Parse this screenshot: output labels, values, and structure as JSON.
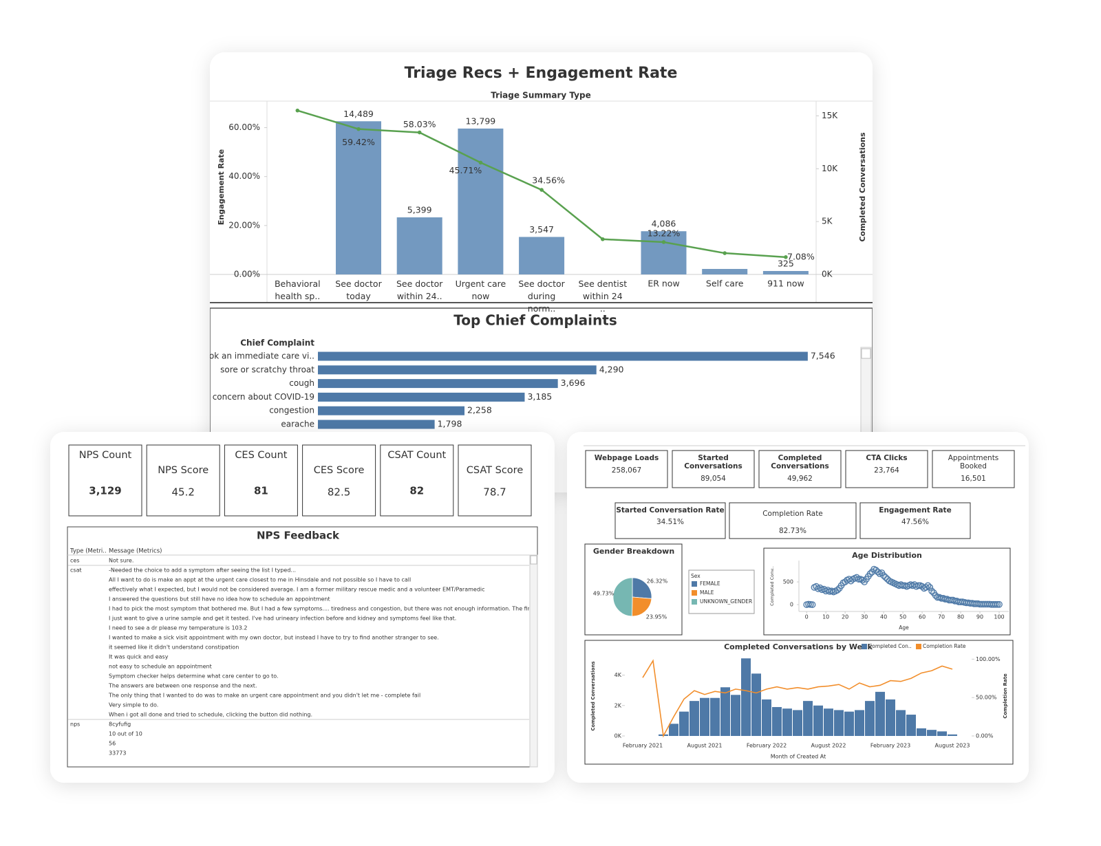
{
  "chart_data": [
    {
      "type": "bar",
      "title": "Triage Recs + Engagement Rate",
      "xlabel": "Triage Summary Type",
      "ylabel": "Engagement Rate",
      "y2label": "Completed Conversations",
      "categories": [
        "Behavioral health sp..",
        "See doctor today",
        "See doctor within 24..",
        "Urgent care now",
        "See doctor during norm..",
        "See dentist within 24 ..",
        "ER now",
        "Self care",
        "911 now"
      ],
      "ylim": [
        0,
        70
      ],
      "yticks": [
        {
          "value": 0,
          "label": "0.00%"
        },
        {
          "value": 20,
          "label": "20.00%"
        },
        {
          "value": 40,
          "label": "40.00%"
        },
        {
          "value": 60,
          "label": "60.00%"
        }
      ],
      "y2lim": [
        0,
        16200
      ],
      "y2ticks": [
        {
          "value": 0,
          "label": "0K"
        },
        {
          "value": 5000,
          "label": "5K"
        },
        {
          "value": 10000,
          "label": "10K"
        },
        {
          "value": 15000,
          "label": "15K"
        }
      ],
      "series": [
        {
          "type": "bar",
          "axis": "y2",
          "color": "#7399c0",
          "values": [
            null,
            14489,
            5399,
            13799,
            3547,
            null,
            4086,
            520,
            325
          ],
          "value_labels": [
            null,
            "14,489",
            "5,399",
            "13,799",
            "3,547",
            null,
            "4,086",
            null,
            "325"
          ]
        },
        {
          "type": "line",
          "color": "#59a14f",
          "values": [
            67,
            59.42,
            58.03,
            45.71,
            34.56,
            14.4,
            13.22,
            8.7,
            7.08
          ],
          "value_labels": [
            null,
            "59.42%",
            "58.03%",
            "45.71%",
            "34.56%",
            null,
            "13.22%",
            null,
            "7.08%"
          ]
        }
      ]
    },
    {
      "type": "hbar",
      "title": "Top Chief Complaints",
      "ylabel": "Chief Complaint",
      "categories": [
        "book an immediate care vi..",
        "sore or scratchy throat",
        "cough",
        "concern about COVID-19",
        "congestion",
        "earache"
      ],
      "values": [
        7546,
        4290,
        3696,
        3185,
        2258,
        1798
      ],
      "value_labels": [
        "7,546",
        "4,290",
        "3,696",
        "3,185",
        "2,258",
        "1,798"
      ],
      "color": "#4e79a7",
      "xlim": [
        0,
        8300
      ]
    },
    {
      "type": "pie",
      "title": "Gender Breakdown",
      "legend_title": "Sex",
      "categories": [
        "FEMALE",
        "MALE",
        "UNKNOWN_GENDER"
      ],
      "values": [
        26.32,
        23.95,
        49.73
      ],
      "value_labels": [
        "26.32%",
        "23.95%",
        "49.73%"
      ],
      "colors": [
        "#4e79a7",
        "#f28e2b",
        "#76b7b2"
      ]
    },
    {
      "type": "scatter",
      "title": "Age Distribution",
      "xlabel": "Age",
      "ylabel": "Completed Conv..",
      "color": "#4e79a7",
      "x": [
        0,
        1,
        2,
        3,
        4,
        5,
        6,
        7,
        8,
        9,
        10,
        11,
        12,
        13,
        14,
        15,
        16,
        17,
        18,
        19,
        20,
        21,
        22,
        23,
        24,
        25,
        26,
        27,
        28,
        29,
        30,
        31,
        32,
        33,
        34,
        35,
        36,
        37,
        38,
        39,
        40,
        41,
        42,
        43,
        44,
        45,
        46,
        47,
        48,
        49,
        50,
        51,
        52,
        53,
        54,
        55,
        56,
        57,
        58,
        59,
        60,
        61,
        62,
        63,
        64,
        65,
        66,
        67,
        68,
        69,
        70,
        71,
        72,
        73,
        74,
        75,
        76,
        77,
        78,
        79,
        80,
        81,
        82,
        83,
        84,
        85,
        86,
        87,
        88,
        89,
        90,
        91,
        92,
        93,
        94,
        95,
        96,
        97,
        98,
        99,
        100
      ],
      "values": [
        0,
        10,
        5,
        0,
        380,
        400,
        350,
        370,
        330,
        340,
        300,
        320,
        290,
        300,
        280,
        300,
        320,
        360,
        420,
        480,
        500,
        540,
        560,
        520,
        560,
        580,
        600,
        560,
        560,
        540,
        500,
        560,
        620,
        680,
        720,
        780,
        760,
        720,
        680,
        700,
        640,
        600,
        560,
        520,
        500,
        480,
        460,
        440,
        420,
        440,
        420,
        420,
        400,
        420,
        440,
        420,
        440,
        400,
        420,
        420,
        400,
        360,
        380,
        420,
        380,
        300,
        260,
        200,
        160,
        160,
        140,
        140,
        120,
        120,
        100,
        100,
        100,
        80,
        80,
        60,
        60,
        60,
        50,
        40,
        40,
        30,
        30,
        20,
        20,
        20,
        10,
        10,
        10,
        10,
        10,
        10,
        5,
        5,
        5,
        5,
        5
      ],
      "xlim": [
        -4,
        105
      ],
      "xticks": [
        0,
        10,
        20,
        30,
        40,
        50,
        60,
        70,
        80,
        90,
        100
      ],
      "ylim": [
        -150,
        970
      ],
      "yticks": [
        0,
        500
      ]
    },
    {
      "type": "bar",
      "title": "Completed Conversations by Week",
      "xlabel": "Month of Created At",
      "ylabel": "Completed Conversations",
      "y2label": "Completion Rate",
      "categories": [
        "February 2021",
        null,
        null,
        null,
        null,
        null,
        "August 2021",
        null,
        null,
        null,
        null,
        null,
        "February 2022",
        null,
        null,
        null,
        null,
        null,
        "August 2022",
        null,
        null,
        null,
        null,
        null,
        "February 2023",
        null,
        null,
        null,
        null,
        null,
        "August 2023"
      ],
      "ylim": [
        0,
        5200
      ],
      "yticks": [
        {
          "value": 0,
          "label": "0K"
        },
        {
          "value": 2000,
          "label": "2K"
        },
        {
          "value": 4000,
          "label": "4K"
        }
      ],
      "y2lim": [
        0,
        103
      ],
      "y2ticks": [
        {
          "value": 0,
          "label": "0.00%"
        },
        {
          "value": 50,
          "label": "50.00%"
        },
        {
          "value": 100,
          "label": "100.00%"
        }
      ],
      "series": [
        {
          "name": "Completed Con..",
          "type": "bar",
          "color": "#4e79a7",
          "values": [
            null,
            null,
            100,
            800,
            1600,
            2300,
            2500,
            2500,
            3200,
            2700,
            5100,
            4100,
            2400,
            1900,
            1800,
            1700,
            2300,
            2000,
            1800,
            1700,
            1600,
            1700,
            2300,
            2900,
            2400,
            1700,
            1400,
            500,
            400,
            300,
            100
          ]
        },
        {
          "name": "Completion Rate",
          "type": "line",
          "axis": "y2",
          "color": "#f28e2b",
          "values": [
            76,
            98,
            0,
            25,
            48,
            59,
            54,
            58,
            56,
            61,
            59,
            56,
            61,
            64,
            61,
            63,
            61,
            64,
            65,
            67,
            61,
            69,
            64,
            66,
            72,
            71,
            75,
            82,
            85,
            91,
            87
          ]
        }
      ]
    }
  ],
  "survey_cards": [
    {
      "label": "NPS Count",
      "value": "3,129"
    },
    {
      "label": "NPS Score",
      "value": "45.2"
    },
    {
      "label": "CES Count",
      "value": "81"
    },
    {
      "label": "CES Score",
      "value": "82.5"
    },
    {
      "label": "CSAT Count",
      "value": "82"
    },
    {
      "label": "CSAT Score",
      "value": "78.7"
    }
  ],
  "nps_feedback": {
    "title": "NPS Feedback",
    "columns": [
      "Type (Metri..",
      "Message (Metrics)"
    ],
    "groups": [
      {
        "type": "ces",
        "messages": [
          "Not sure."
        ]
      },
      {
        "type": "csat",
        "messages": [
          "-Needed the choice to add a symptom after seeing the list I typed...",
          "All I want to do is make an appt at the urgent care closest to me in Hinsdale and not possible so I have to call",
          "effectively what I expected, but I would not be considered average.  I am a former military rescue medic and a volunteer EMT/Paramedic",
          "I answered the questions but still have no idea  how to schedule an appointment",
          "I had to pick the most symptom that bothered me.  But I had a few symptoms.... tiredness and congestion, but there was not enough information.  The first",
          "I just want to give a urine sample and get it tested. I've had urineary infection before and kidney and symptoms feel like that.",
          "I need to see a dr please  my temperature is 103.2",
          "I wanted to make a sick visit appointment with my own doctor, but instead I have to try to find another stranger to see.",
          "it seemed like it didn't understand constipation",
          "It was quick and easy",
          "not easy to schedule an appointment",
          "Symptom checker helps determine what care center to go to.",
          "The answers are between one response and the next.",
          "The only thing that I wanted to do was to make an urgent care appointment and you didn't let me - complete fail",
          "Very simple to do.",
          "When i got all done and tried to schedule, clicking the button did nothing."
        ]
      },
      {
        "type": "nps",
        "messages": [
          "8cyfufig",
          "10 out of 10",
          "56",
          "33773"
        ]
      }
    ]
  },
  "metric_cards": [
    {
      "label": "Webpage Loads",
      "value": "258,067"
    },
    {
      "label": "Started Conversations",
      "value": "89,054"
    },
    {
      "label": "Completed Conversations",
      "value": "49,962"
    },
    {
      "label": "CTA Clicks",
      "value": "23,764"
    },
    {
      "label": "Appointments Booked",
      "value": "16,501"
    }
  ],
  "rate_cards": [
    {
      "label": "Started Conversation Rate",
      "value": "34.51%"
    },
    {
      "label": "Completion Rate",
      "value": "82.73%"
    },
    {
      "label": "Engagement Rate",
      "value": "47.56%"
    }
  ]
}
